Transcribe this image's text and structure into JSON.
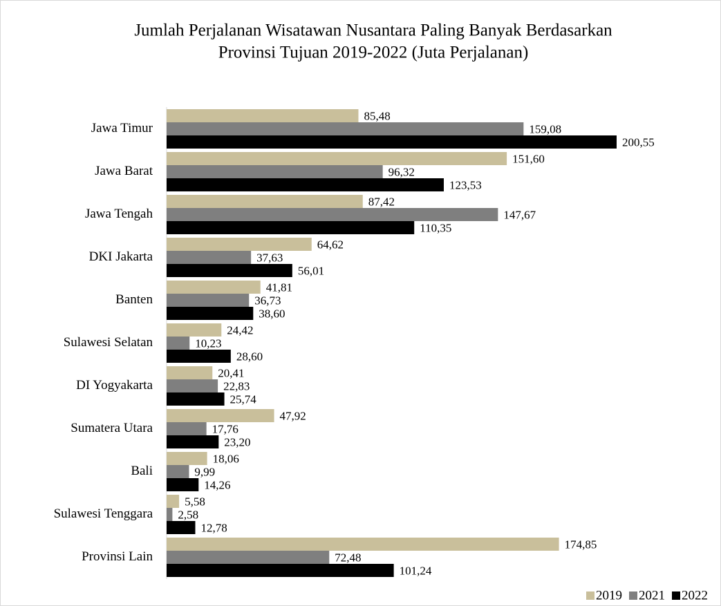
{
  "chart_data": {
    "type": "bar",
    "orientation": "horizontal",
    "title": [
      "Jumlah Perjalanan Wisatawan Nusantara Paling Banyak Berdasarkan",
      "Provinsi Tujuan 2019-2022 (Juta Perjalanan)"
    ],
    "categories": [
      "Jawa Timur",
      "Jawa Barat",
      "Jawa Tengah",
      "DKI Jakarta",
      "Banten",
      "Sulawesi Selatan",
      "DI Yogyakarta",
      "Sumatera Utara",
      "Bali",
      "Sulawesi Tenggara",
      "Provinsi Lain"
    ],
    "series": [
      {
        "name": "2019",
        "color": "#c9bf9b",
        "values": [
          85.48,
          151.6,
          87.42,
          64.62,
          41.81,
          24.42,
          20.41,
          47.92,
          18.06,
          5.58,
          174.85
        ],
        "value_labels": [
          "85,48",
          "151,60",
          "87,42",
          "64,62",
          "41,81",
          "24,42",
          "20,41",
          "47,92",
          "18,06",
          "5,58",
          "174,85"
        ]
      },
      {
        "name": "2021",
        "color": "#7f7f7f",
        "values": [
          159.08,
          96.32,
          147.67,
          37.63,
          36.73,
          10.23,
          22.83,
          17.76,
          9.99,
          2.58,
          72.48
        ],
        "value_labels": [
          "159,08",
          "96,32",
          "147,67",
          "37,63",
          "36,73",
          "10,23",
          "22,83",
          "17,76",
          "9,99",
          "2,58",
          "72,48"
        ]
      },
      {
        "name": "2022",
        "color": "#000000",
        "values": [
          200.55,
          123.53,
          110.35,
          56.01,
          38.6,
          28.6,
          25.74,
          23.2,
          14.26,
          12.78,
          101.24
        ],
        "value_labels": [
          "200,55",
          "123,53",
          "110,35",
          "56,01",
          "38,60",
          "28,60",
          "25,74",
          "23,20",
          "14,26",
          "12,78",
          "101,24"
        ]
      }
    ],
    "legend": "bottom-right"
  }
}
